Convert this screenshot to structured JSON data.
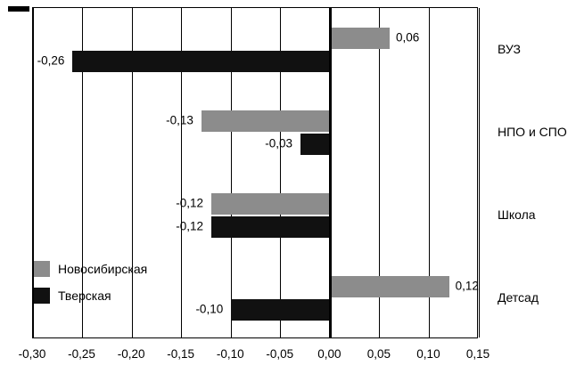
{
  "chart_data": {
    "type": "bar",
    "orientation": "horizontal",
    "title": "",
    "categories": [
      "ВУЗ",
      "НПО и СПО",
      "Школа",
      "Детсад"
    ],
    "series": [
      {
        "name": "Новосибирская",
        "color": "#8c8c8c",
        "values": [
          0.06,
          -0.13,
          -0.12,
          0.12
        ],
        "value_labels": [
          "0,06",
          "-0,13",
          "-0,12",
          "0,12"
        ]
      },
      {
        "name": "Тверская",
        "color": "#111111",
        "values": [
          -0.26,
          -0.03,
          -0.12,
          -0.1
        ],
        "value_labels": [
          "-0,26",
          "-0,03",
          "-0,12",
          "-0,10"
        ]
      }
    ],
    "xlim": [
      -0.3,
      0.15
    ],
    "xticks": [
      -0.3,
      -0.25,
      -0.2,
      -0.15,
      -0.1,
      -0.05,
      0.0,
      0.05,
      0.1,
      0.15
    ],
    "xtick_labels": [
      "-0,30",
      "-0,25",
      "-0,20",
      "-0,15",
      "-0,10",
      "-0,05",
      "0,00",
      "0,05",
      "0,10",
      "0,15"
    ],
    "grid": true,
    "legend_position": "inside-bottom-left",
    "colors": {
      "background": "#ffffff",
      "grid": "#000000",
      "axis": "#000000"
    }
  }
}
